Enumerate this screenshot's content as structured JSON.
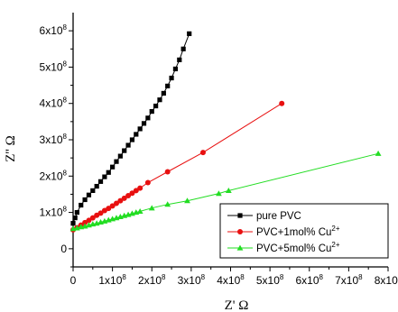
{
  "chart_data": {
    "type": "line",
    "xlabel": "Z' Ω",
    "ylabel": "Z'' Ω",
    "xlim": [
      0,
      800000000
    ],
    "ylim": [
      -50000000,
      650000000
    ],
    "x_ticks": [
      "0",
      "1x10",
      "2x10",
      "3x10",
      "4x10",
      "5x10",
      "6x10",
      "7x10",
      "8x10"
    ],
    "x_tick_exponent": "8",
    "y_ticks": [
      "0",
      "1x10",
      "2x10",
      "3x10",
      "4x10",
      "5x10",
      "6x10"
    ],
    "y_tick_exponent": "8",
    "grid": false,
    "legend_position": "bottom-right",
    "series": [
      {
        "name": "pure PVC",
        "color": "#000000",
        "marker": "square",
        "x": [
          0,
          5000000,
          10000000,
          20000000,
          30000000,
          40000000,
          50000000,
          60000000,
          70000000,
          80000000,
          90000000,
          100000000,
          110000000,
          120000000,
          130000000,
          140000000,
          150000000,
          160000000,
          170000000,
          180000000,
          190000000,
          200000000,
          210000000,
          220000000,
          230000000,
          240000000,
          250000000,
          260000000,
          270000000,
          280000000,
          295000000
        ],
        "y": [
          70000000,
          85000000,
          100000000,
          120000000,
          135000000,
          148000000,
          160000000,
          172000000,
          185000000,
          198000000,
          210000000,
          225000000,
          240000000,
          255000000,
          270000000,
          285000000,
          300000000,
          315000000,
          330000000,
          345000000,
          360000000,
          378000000,
          393000000,
          410000000,
          428000000,
          448000000,
          470000000,
          495000000,
          520000000,
          550000000,
          592000000
        ]
      },
      {
        "name": "PVC+1mol% Cu",
        "name_superscript": "2+",
        "color": "#e81010",
        "marker": "circle",
        "x": [
          0,
          10000000,
          20000000,
          30000000,
          40000000,
          50000000,
          60000000,
          70000000,
          80000000,
          90000000,
          100000000,
          110000000,
          120000000,
          130000000,
          140000000,
          150000000,
          160000000,
          170000000,
          190000000,
          240000000,
          330000000,
          530000000
        ],
        "y": [
          52000000,
          58000000,
          65000000,
          72000000,
          78000000,
          85000000,
          92000000,
          98000000,
          105000000,
          111000000,
          118000000,
          125000000,
          132000000,
          139000000,
          146000000,
          153000000,
          160000000,
          167000000,
          182000000,
          212000000,
          265000000,
          400000000
        ]
      },
      {
        "name": "PVC+5mol% Cu",
        "name_superscript": "2+",
        "color": "#22dd22",
        "marker": "triangle",
        "x": [
          0,
          10000000,
          20000000,
          30000000,
          40000000,
          50000000,
          60000000,
          70000000,
          80000000,
          90000000,
          100000000,
          110000000,
          120000000,
          130000000,
          140000000,
          150000000,
          160000000,
          170000000,
          200000000,
          240000000,
          290000000,
          370000000,
          395000000,
          775000000
        ],
        "y": [
          55000000,
          57000000,
          60000000,
          62000000,
          65000000,
          68000000,
          70000000,
          73000000,
          76000000,
          79000000,
          82000000,
          85000000,
          88000000,
          91000000,
          94000000,
          97000000,
          100000000,
          103000000,
          112000000,
          122000000,
          132000000,
          152000000,
          160000000,
          262000000
        ]
      }
    ]
  }
}
